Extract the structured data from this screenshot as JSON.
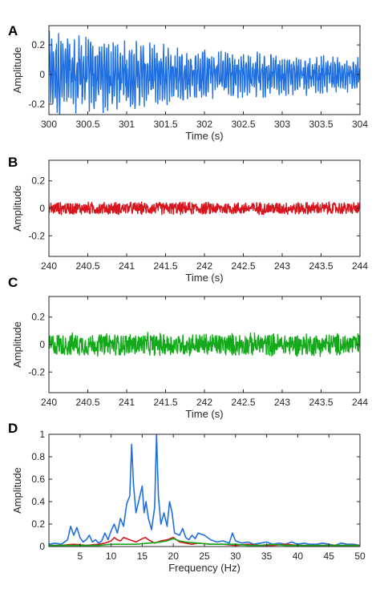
{
  "chart_data": [
    {
      "type": "line",
      "panel": "A",
      "xlabel": "Time (s)",
      "ylabel": "Amplitude",
      "xlim": [
        300,
        304
      ],
      "ylim": [
        -0.27,
        0.33
      ],
      "xticks": [
        "300",
        "300.5",
        "301",
        "301.5",
        "302",
        "302.5",
        "303",
        "303.5",
        "304"
      ],
      "yticks": [
        "-0.2",
        "0",
        "0.2"
      ],
      "series": [
        {
          "color": "#1f6fe0",
          "amplitude_envelope": [
            0.3,
            0.18,
            0.12
          ],
          "mean": 0.0
        }
      ]
    },
    {
      "type": "line",
      "panel": "B",
      "xlabel": "Time (s)",
      "ylabel": "Amplitude",
      "xlim": [
        240,
        244
      ],
      "ylim": [
        -0.35,
        0.35
      ],
      "xticks": [
        "240",
        "240.5",
        "241",
        "241.5",
        "242",
        "242.5",
        "243",
        "243.5",
        "244"
      ],
      "yticks": [
        "-0.2",
        "0",
        "0.2"
      ],
      "series": [
        {
          "color": "#d8141c",
          "amplitude_envelope": [
            0.05,
            0.05,
            0.05
          ],
          "mean": 0.0
        }
      ]
    },
    {
      "type": "line",
      "panel": "C",
      "xlabel": "Time (s)",
      "ylabel": "Amplitude",
      "xlim": [
        240,
        244
      ],
      "ylim": [
        -0.35,
        0.35
      ],
      "xticks": [
        "240",
        "240.5",
        "241",
        "241.5",
        "242",
        "242.5",
        "243",
        "243.5",
        "244"
      ],
      "yticks": [
        "-0.2",
        "0",
        "0.2"
      ],
      "series": [
        {
          "color": "#13a91a",
          "amplitude_envelope": [
            0.09,
            0.09,
            0.09
          ],
          "mean": 0.0
        }
      ]
    },
    {
      "type": "line",
      "panel": "D",
      "xlabel": "Frequency (Hz)",
      "ylabel": "Amplitude",
      "xlim": [
        0,
        50
      ],
      "ylim": [
        0,
        1
      ],
      "xticks": [
        "5",
        "10",
        "15",
        "20",
        "25",
        "30",
        "35",
        "40",
        "45",
        "50"
      ],
      "yticks": [
        "0",
        "0.2",
        "0.4",
        "0.6",
        "0.8",
        "1"
      ],
      "series": [
        {
          "color": "#1f6fe0",
          "x": [
            0,
            1,
            2,
            3,
            3.5,
            4,
            4.5,
            5,
            5.5,
            6,
            6.5,
            7,
            7.5,
            8,
            8.5,
            9,
            9.5,
            10,
            10.5,
            11,
            11.5,
            12,
            12.5,
            13,
            13.3,
            13.6,
            14,
            14.5,
            15,
            15.3,
            15.6,
            16,
            16.5,
            17,
            17.3,
            17.6,
            18,
            18.5,
            19,
            19.4,
            19.8,
            20.2,
            21,
            21.5,
            22,
            22.5,
            23,
            23.5,
            24,
            25,
            26,
            27,
            28,
            29,
            29.5,
            30,
            31,
            32,
            33,
            34,
            35,
            36,
            37,
            38,
            39,
            40,
            41,
            42,
            43,
            44,
            45,
            46,
            47,
            48,
            49,
            50
          ],
          "y": [
            0.02,
            0.03,
            0.02,
            0.06,
            0.18,
            0.1,
            0.17,
            0.08,
            0.04,
            0.06,
            0.1,
            0.04,
            0.06,
            0.03,
            0.05,
            0.12,
            0.06,
            0.14,
            0.2,
            0.12,
            0.25,
            0.18,
            0.38,
            0.45,
            0.91,
            0.55,
            0.3,
            0.42,
            0.54,
            0.3,
            0.4,
            0.25,
            0.15,
            0.35,
            1.0,
            0.45,
            0.2,
            0.3,
            0.18,
            0.4,
            0.3,
            0.12,
            0.1,
            0.16,
            0.08,
            0.06,
            0.1,
            0.07,
            0.12,
            0.1,
            0.06,
            0.04,
            0.05,
            0.03,
            0.12,
            0.05,
            0.03,
            0.04,
            0.02,
            0.03,
            0.04,
            0.02,
            0.03,
            0.02,
            0.04,
            0.02,
            0.03,
            0.02,
            0.02,
            0.03,
            0.02,
            0.01,
            0.03,
            0.02,
            0.02,
            0.01
          ]
        },
        {
          "color": "#d8141c",
          "x": [
            0,
            2,
            4,
            6,
            8,
            9,
            10,
            10.5,
            11,
            11.5,
            12,
            13,
            14,
            15,
            15.5,
            16,
            17,
            18,
            19,
            20,
            21,
            22,
            23,
            24,
            26,
            28,
            30,
            32,
            34,
            36,
            38,
            40,
            42,
            44,
            46,
            48,
            50
          ],
          "y": [
            0.01,
            0.01,
            0.02,
            0.01,
            0.02,
            0.03,
            0.05,
            0.08,
            0.06,
            0.05,
            0.08,
            0.06,
            0.04,
            0.07,
            0.08,
            0.06,
            0.03,
            0.05,
            0.06,
            0.08,
            0.04,
            0.03,
            0.02,
            0.03,
            0.02,
            0.02,
            0.01,
            0.02,
            0.01,
            0.01,
            0.02,
            0.01,
            0.01,
            0.01,
            0.01,
            0.01,
            0.01
          ]
        },
        {
          "color": "#13a91a",
          "x": [
            0,
            2,
            4,
            6,
            8,
            10,
            12,
            14,
            16,
            18,
            19,
            20,
            21,
            22,
            24,
            26,
            28,
            30,
            32,
            34,
            36,
            38,
            40,
            42,
            44,
            46,
            48,
            50
          ],
          "y": [
            0.01,
            0.01,
            0.01,
            0.01,
            0.01,
            0.02,
            0.02,
            0.02,
            0.03,
            0.04,
            0.05,
            0.07,
            0.05,
            0.04,
            0.03,
            0.02,
            0.02,
            0.02,
            0.01,
            0.01,
            0.02,
            0.01,
            0.01,
            0.01,
            0.01,
            0.01,
            0.01,
            0.01
          ]
        }
      ]
    }
  ],
  "panels": {
    "A": {
      "letter": "A"
    },
    "B": {
      "letter": "B"
    },
    "C": {
      "letter": "C"
    },
    "D": {
      "letter": "D"
    }
  }
}
